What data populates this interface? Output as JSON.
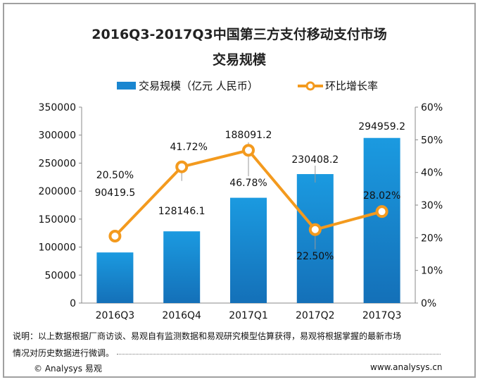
{
  "title_line1": "2016Q3-2017Q3中国第三方支付移动支付市场",
  "title_line2": "交易规模",
  "note_line1": "说明：以上数据根据厂商访谈、易观自有监测数据和易观研究模型估算获得，易观将根据掌握的最新市场",
  "note_line2": "情况对历史数据进行微调。",
  "footer_left": "© Analysys 易观",
  "footer_right": "www.analysys.cn",
  "chart_data": {
    "type": "bar",
    "categories": [
      "2016Q3",
      "2016Q4",
      "2017Q1",
      "2017Q2",
      "2017Q3"
    ],
    "series": [
      {
        "name": "交易规模（亿元 人民币）",
        "type": "bar",
        "axis": "left",
        "color": "#1a86d0",
        "values": [
          90419.5,
          128146.1,
          188091.2,
          230408.2,
          294959.2
        ],
        "labels": [
          "90419.5",
          "128146.1",
          "188091.2",
          "230408.2",
          "294959.2"
        ]
      },
      {
        "name": "环比增长率",
        "type": "line",
        "axis": "right",
        "color": "#f39a1e",
        "values": [
          20.5,
          41.72,
          46.78,
          22.5,
          28.02
        ],
        "labels": [
          "20.50%",
          "41.72%",
          "46.78%",
          "22.50%",
          "28.02%"
        ]
      }
    ],
    "left_axis": {
      "ylim": [
        0,
        350000
      ],
      "ticks": [
        "0",
        "50000",
        "100000",
        "150000",
        "200000",
        "250000",
        "300000",
        "350000"
      ]
    },
    "right_axis": {
      "ylim": [
        0,
        60
      ],
      "ticks": [
        "0%",
        "10%",
        "20%",
        "30%",
        "40%",
        "50%",
        "60%"
      ]
    },
    "grid": false,
    "legend": "top"
  }
}
